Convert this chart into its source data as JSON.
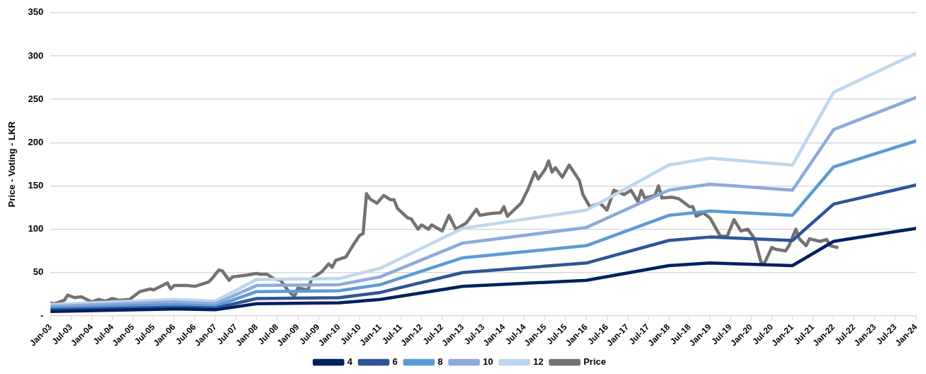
{
  "chart_data": {
    "type": "line",
    "ylabel": "Price - Voting - LKR",
    "xlim": [
      "2003-01",
      "2024-01"
    ],
    "ylim": [
      0,
      350
    ],
    "yticks": [
      {
        "value": 0,
        "label": "-"
      },
      50,
      100,
      150,
      200,
      250,
      300,
      350
    ],
    "xticks": [
      {
        "value": "2003-01",
        "label": "Jan-03"
      },
      {
        "value": "2003-07",
        "label": "Jul-03"
      },
      {
        "value": "2004-01",
        "label": "Jan-04"
      },
      {
        "value": "2004-07",
        "label": "Jul-04"
      },
      {
        "value": "2005-01",
        "label": "Jan-05"
      },
      {
        "value": "2005-07",
        "label": "Jul-05"
      },
      {
        "value": "2006-01",
        "label": "Jan-06"
      },
      {
        "value": "2006-07",
        "label": "Jul-06"
      },
      {
        "value": "2007-01",
        "label": "Jan-07"
      },
      {
        "value": "2007-07",
        "label": "Jul-07"
      },
      {
        "value": "2008-01",
        "label": "Jan-08"
      },
      {
        "value": "2008-07",
        "label": "Jul-08"
      },
      {
        "value": "2009-01",
        "label": "Jan-09"
      },
      {
        "value": "2009-07",
        "label": "Jul-09"
      },
      {
        "value": "2010-01",
        "label": "Jan-10"
      },
      {
        "value": "2010-07",
        "label": "Jul-10"
      },
      {
        "value": "2011-01",
        "label": "Jan-11"
      },
      {
        "value": "2011-07",
        "label": "Jul-11"
      },
      {
        "value": "2012-01",
        "label": "Jan-12"
      },
      {
        "value": "2012-07",
        "label": "Jul-12"
      },
      {
        "value": "2013-01",
        "label": "Jan-13"
      },
      {
        "value": "2013-07",
        "label": "Jul-13"
      },
      {
        "value": "2014-01",
        "label": "Jan-14"
      },
      {
        "value": "2014-07",
        "label": "Jul-14"
      },
      {
        "value": "2015-01",
        "label": "Jan-15"
      },
      {
        "value": "2015-07",
        "label": "Jul-15"
      },
      {
        "value": "2016-01",
        "label": "Jan-16"
      },
      {
        "value": "2016-07",
        "label": "Jul-16"
      },
      {
        "value": "2017-01",
        "label": "Jan-17"
      },
      {
        "value": "2017-07",
        "label": "Jul-17"
      },
      {
        "value": "2018-01",
        "label": "Jan-18"
      },
      {
        "value": "2018-07",
        "label": "Jul-18"
      },
      {
        "value": "2019-01",
        "label": "Jan-19"
      },
      {
        "value": "2019-07",
        "label": "Jul-19"
      },
      {
        "value": "2020-01",
        "label": "Jan-20"
      },
      {
        "value": "2020-07",
        "label": "Jul-20"
      },
      {
        "value": "2021-01",
        "label": "Jan-21"
      },
      {
        "value": "2021-07",
        "label": "Jul-21"
      },
      {
        "value": "2022-01",
        "label": "Jan-22"
      },
      {
        "value": "2022-07",
        "label": "Jul-22"
      },
      {
        "value": "2023-01",
        "label": "Jan-23"
      },
      {
        "value": "2023-07",
        "label": "Jul-23"
      },
      {
        "value": "2024-01",
        "label": "Jan-24"
      }
    ],
    "grid": "y",
    "legend": "bottom",
    "marker": "none",
    "line_style": "solid",
    "series": [
      {
        "name": "4",
        "color": "#002060",
        "x": [
          "2003-01",
          "2006-01",
          "2007-01",
          "2008-01",
          "2010-01",
          "2011-01",
          "2013-01",
          "2016-01",
          "2018-01",
          "2019-01",
          "2021-01",
          "2022-01",
          "2024-01"
        ],
        "values": [
          5,
          8,
          7,
          14,
          15,
          19,
          34,
          41,
          58,
          61,
          58,
          86,
          101
        ]
      },
      {
        "name": "6",
        "color": "#2f5597",
        "x": [
          "2003-01",
          "2006-01",
          "2007-01",
          "2008-01",
          "2010-01",
          "2011-01",
          "2013-01",
          "2016-01",
          "2018-01",
          "2019-01",
          "2021-01",
          "2022-01",
          "2024-01"
        ],
        "values": [
          7,
          10,
          9,
          20,
          21,
          27,
          50,
          61,
          87,
          91,
          87,
          129,
          151
        ]
      },
      {
        "name": "8",
        "color": "#5b9bd5",
        "x": [
          "2003-01",
          "2006-01",
          "2007-01",
          "2008-01",
          "2010-01",
          "2011-01",
          "2013-01",
          "2016-01",
          "2018-01",
          "2019-01",
          "2021-01",
          "2022-01",
          "2024-01"
        ],
        "values": [
          9,
          13,
          11,
          28,
          29,
          36,
          67,
          81,
          116,
          121,
          116,
          172,
          202
        ]
      },
      {
        "name": "10",
        "color": "#8faadc",
        "x": [
          "2003-01",
          "2006-01",
          "2007-01",
          "2008-01",
          "2010-01",
          "2011-01",
          "2013-01",
          "2016-01",
          "2018-01",
          "2019-01",
          "2021-01",
          "2022-01",
          "2024-01"
        ],
        "values": [
          11,
          16,
          14,
          35,
          36,
          45,
          84,
          102,
          145,
          152,
          145,
          215,
          252
        ]
      },
      {
        "name": "12",
        "color": "#bdd7ee",
        "x": [
          "2003-01",
          "2006-01",
          "2007-01",
          "2008-01",
          "2010-01",
          "2011-01",
          "2013-01",
          "2016-01",
          "2018-01",
          "2019-01",
          "2021-01",
          "2022-01",
          "2024-01"
        ],
        "values": [
          13,
          19,
          17,
          42,
          43,
          55,
          101,
          122,
          174,
          182,
          174,
          258,
          303
        ]
      },
      {
        "name": "Price",
        "color": "#767171",
        "x": [
          "2003-01",
          "2003-02",
          "2003-05",
          "2003-06",
          "2003-08",
          "2003-10",
          "2004-01",
          "2004-03",
          "2004-05",
          "2004-07",
          "2004-09",
          "2004-12",
          "2005-03",
          "2005-06",
          "2005-07",
          "2005-11",
          "2005-12",
          "2006-01",
          "2006-05",
          "2006-07",
          "2006-11",
          "2006-12",
          "2007-02",
          "2007-03",
          "2007-05",
          "2007-06",
          "2007-10",
          "2008-01",
          "2008-02",
          "2008-04",
          "2008-06",
          "2008-08",
          "2008-10",
          "2008-12",
          "2009-01",
          "2009-04",
          "2009-05",
          "2009-08",
          "2009-10",
          "2009-11",
          "2009-12",
          "2010-03",
          "2010-05",
          "2010-07",
          "2010-08",
          "2010-09",
          "2010-10",
          "2010-12",
          "2011-02",
          "2011-04",
          "2011-05",
          "2011-06",
          "2011-09",
          "2011-10",
          "2011-12",
          "2012-01",
          "2012-03",
          "2012-04",
          "2012-07",
          "2012-09",
          "2012-11",
          "2013-02",
          "2013-05",
          "2013-06",
          "2013-09",
          "2013-12",
          "2014-01",
          "2014-02",
          "2014-06",
          "2014-08",
          "2014-10",
          "2014-11",
          "2015-01",
          "2015-02",
          "2015-03",
          "2015-04",
          "2015-06",
          "2015-08",
          "2015-11",
          "2015-12",
          "2016-02",
          "2016-05",
          "2016-07",
          "2016-09",
          "2016-12",
          "2017-02",
          "2017-04",
          "2017-05",
          "2017-06",
          "2017-09",
          "2017-10",
          "2017-11",
          "2018-02",
          "2018-04",
          "2018-07",
          "2018-08",
          "2018-09",
          "2018-11",
          "2019-01",
          "2019-04",
          "2019-06",
          "2019-08",
          "2019-10",
          "2019-12",
          "2020-02",
          "2020-04",
          "2020-05",
          "2020-07",
          "2020-08",
          "2020-11",
          "2020-12",
          "2021-02",
          "2021-03",
          "2021-05",
          "2021-06",
          "2021-09",
          "2021-11",
          "2021-12",
          "2022-02"
        ],
        "values": [
          15,
          14,
          18,
          24,
          21,
          22,
          16,
          19,
          17,
          20,
          18,
          19,
          28,
          31,
          30,
          38,
          31,
          35,
          35,
          34,
          39,
          43,
          53,
          52,
          41,
          45,
          47,
          49,
          48,
          48,
          43,
          41,
          30,
          22,
          32,
          30,
          43,
          51,
          60,
          56,
          64,
          68,
          81,
          93,
          95,
          141,
          135,
          130,
          139,
          134,
          134,
          124,
          113,
          112,
          100,
          105,
          100,
          105,
          98,
          116,
          100,
          107,
          123,
          116,
          118,
          119,
          126,
          115,
          130,
          146,
          166,
          158,
          169,
          179,
          166,
          171,
          160,
          174,
          156,
          140,
          126,
          130,
          122,
          145,
          140,
          145,
          132,
          145,
          136,
          139,
          150,
          136,
          137,
          135,
          126,
          126,
          115,
          119,
          113,
          92,
          92,
          111,
          98,
          100,
          89,
          60,
          62,
          79,
          77,
          75,
          81,
          100,
          89,
          81,
          89,
          86,
          88,
          81,
          79
        ]
      }
    ]
  }
}
